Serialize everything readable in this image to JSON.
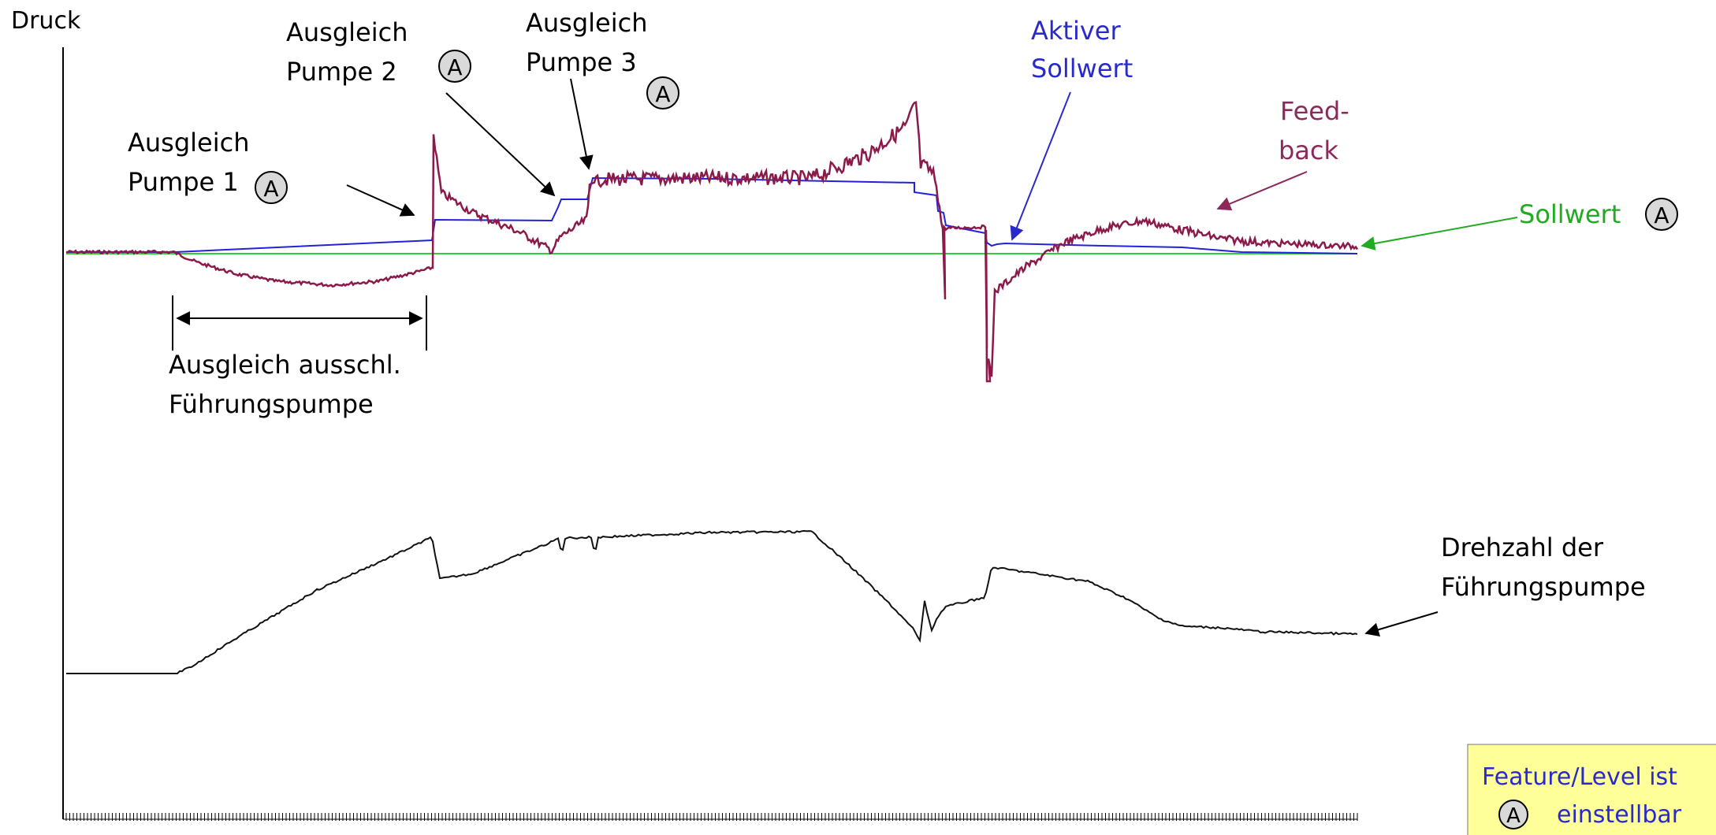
{
  "axis": {
    "y_label": "Druck"
  },
  "labels": {
    "pumpe1": [
      "Ausgleich",
      "Pumpe 1"
    ],
    "pumpe2": [
      "Ausgleich",
      "Pumpe 2"
    ],
    "pumpe3": [
      "Ausgleich",
      "Pumpe 3"
    ],
    "aktiver_sollwert": [
      "Aktiver",
      "Sollwert"
    ],
    "feedback": [
      "Feed-",
      "back"
    ],
    "sollwert": "Sollwert",
    "fuehrung": [
      "Ausgleich ausschl.",
      "Führungspumpe"
    ],
    "drehzahl": [
      "Drehzahl der",
      "Führungspumpe"
    ]
  },
  "marker_symbol": "A",
  "legend": {
    "line1": "Feature/Level ist",
    "line2": "einstellbar"
  },
  "colors": {
    "feedback": "#8b1a4a",
    "active_setpoint": "#2222dd",
    "setpoint": "#33cc33",
    "speed": "#111111",
    "setpoint_label": "#22aa22",
    "active_label": "#2a2acc",
    "feedback_label": "#8b2a5a",
    "legend_bg": "#ffff99",
    "legend_text": "#2a2acc"
  }
}
